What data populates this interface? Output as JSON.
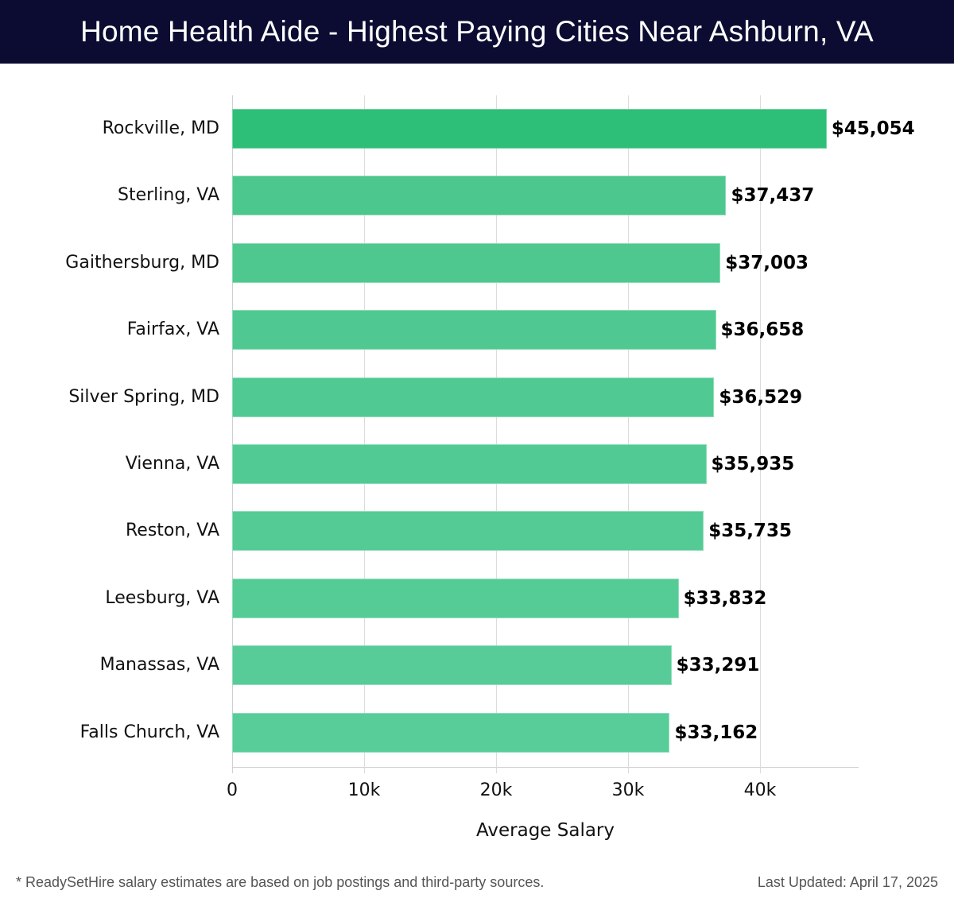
{
  "header": {
    "title": "Home Health Aide - Highest Paying Cities Near Ashburn, VA"
  },
  "footer": {
    "note": "* ReadySetHire salary estimates are based on job postings and third-party sources.",
    "last_updated": "Last Updated: April 17, 2025"
  },
  "colors": {
    "header_bg": "#0c0c33",
    "top_bar": "#2dbe78",
    "bars_start": "#4cc78e",
    "bars_end": "#58cd99"
  },
  "chart_data": {
    "type": "bar",
    "orientation": "horizontal",
    "title": "Home Health Aide - Highest Paying Cities Near Ashburn, VA",
    "xlabel": "Average Salary",
    "ylabel": "",
    "categories": [
      "Rockville, MD",
      "Sterling, VA",
      "Gaithersburg, MD",
      "Fairfax, VA",
      "Silver Spring, MD",
      "Vienna, VA",
      "Reston, VA",
      "Leesburg, VA",
      "Manassas, VA",
      "Falls Church, VA"
    ],
    "values": [
      45054,
      37437,
      37003,
      36658,
      36529,
      35935,
      35735,
      33832,
      33291,
      33162
    ],
    "value_labels": [
      "$45,054",
      "$37,437",
      "$37,003",
      "$36,658",
      "$36,529",
      "$35,935",
      "$35,735",
      "$33,832",
      "$33,291",
      "$33,162"
    ],
    "xticks": [
      0,
      10000,
      20000,
      30000,
      40000
    ],
    "xtick_labels": [
      "0",
      "10k",
      "20k",
      "30k",
      "40k"
    ],
    "xlim": [
      0,
      47450
    ],
    "grid": true,
    "legend": null
  }
}
